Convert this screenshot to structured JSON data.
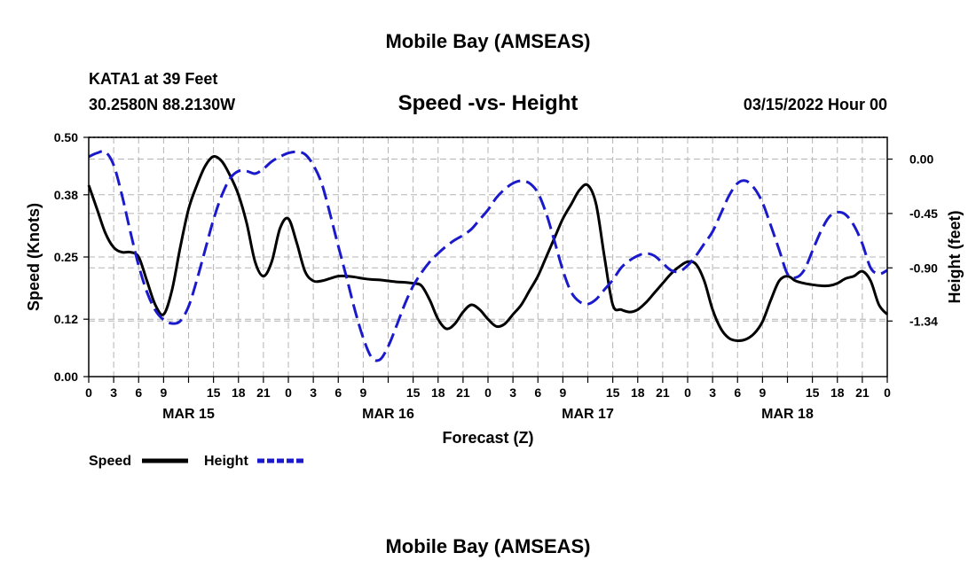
{
  "header": {
    "title": "Mobile Bay (AMSEAS)",
    "station": "KATA1 at 39 Feet",
    "coords": "30.2580N  88.2130W",
    "subtitle": "Speed -vs- Height",
    "datetime": "03/15/2022 Hour 00",
    "footer_title": "Mobile Bay (AMSEAS)"
  },
  "legend": {
    "speed_label": "Speed",
    "height_label": "Height"
  },
  "colors": {
    "speed": "#000000",
    "height": "#1a1acc",
    "grid": "#b4b4b4"
  },
  "chart_data": {
    "type": "line",
    "title": "Speed -vs- Height",
    "xlabel": "Forecast (Z)",
    "ylabel": "Speed (Knots)",
    "y2label": "Height (feet)",
    "xlim": [
      0,
      96
    ],
    "ylim": [
      0,
      0.5
    ],
    "y2lim": [
      -1.8,
      0.18
    ],
    "x_tick_labels": [
      "0",
      "3",
      "6",
      "9",
      "15",
      "18",
      "21",
      "0",
      "3",
      "6",
      "9",
      "15",
      "18",
      "21",
      "0",
      "3",
      "6",
      "9",
      "15",
      "18",
      "21",
      "0",
      "3",
      "6",
      "9",
      "15",
      "18",
      "21",
      "0"
    ],
    "x_tick_positions": [
      0,
      3,
      6,
      9,
      15,
      18,
      21,
      24,
      27,
      30,
      33,
      39,
      42,
      45,
      48,
      51,
      54,
      57,
      63,
      66,
      69,
      72,
      75,
      78,
      81,
      87,
      90,
      93,
      96
    ],
    "minor_x_ticks": [
      12,
      36,
      60,
      84
    ],
    "x_grid": [
      3,
      6,
      9,
      12,
      15,
      18,
      21,
      24,
      27,
      30,
      33,
      36,
      39,
      42,
      45,
      48,
      51,
      54,
      57,
      60,
      63,
      66,
      69,
      72,
      75,
      78,
      81,
      84,
      87,
      90,
      93
    ],
    "day_labels": [
      {
        "x": 12,
        "label": "MAR 15"
      },
      {
        "x": 36,
        "label": "MAR 16"
      },
      {
        "x": 60,
        "label": "MAR 17"
      },
      {
        "x": 84,
        "label": "MAR 18"
      }
    ],
    "y_ticks": [
      0.0,
      0.12,
      0.25,
      0.38,
      0.5
    ],
    "y_tick_labels": [
      "0.00",
      "0.12",
      "0.25",
      "0.38",
      "0.50"
    ],
    "y2_ticks": [
      0.0,
      -0.45,
      -0.9,
      -1.34
    ],
    "y2_tick_labels": [
      "0.00",
      "-0.45",
      "-0.90",
      "-1.34"
    ],
    "series": [
      {
        "name": "Speed",
        "axis": "left",
        "style": "solid",
        "x": [
          0,
          1,
          2,
          3,
          4,
          5,
          6,
          7,
          8,
          9,
          10,
          11,
          12,
          13,
          14,
          15,
          16,
          17,
          18,
          19,
          20,
          21,
          22,
          23,
          24,
          25,
          26,
          27,
          28,
          29,
          30,
          31,
          32,
          33,
          34,
          35,
          36,
          37,
          38,
          39,
          40,
          41,
          42,
          43,
          44,
          45,
          46,
          47,
          48,
          49,
          50,
          51,
          52,
          53,
          54,
          55,
          56,
          57,
          58,
          59,
          60,
          61,
          62,
          63,
          64,
          65,
          66,
          67,
          68,
          69,
          70,
          71,
          72,
          73,
          74,
          75,
          76,
          77,
          78,
          79,
          80,
          81,
          82,
          83,
          84,
          85,
          86,
          87,
          88,
          89,
          90,
          91,
          92,
          93,
          94,
          95,
          96
        ],
        "values": [
          0.4,
          0.35,
          0.3,
          0.27,
          0.26,
          0.26,
          0.25,
          0.2,
          0.15,
          0.13,
          0.18,
          0.27,
          0.35,
          0.4,
          0.44,
          0.46,
          0.45,
          0.42,
          0.38,
          0.32,
          0.24,
          0.21,
          0.24,
          0.31,
          0.33,
          0.28,
          0.22,
          0.2,
          0.2,
          0.205,
          0.21,
          0.21,
          0.208,
          0.205,
          0.203,
          0.202,
          0.2,
          0.198,
          0.197,
          0.195,
          0.19,
          0.16,
          0.12,
          0.1,
          0.11,
          0.135,
          0.15,
          0.14,
          0.12,
          0.105,
          0.11,
          0.13,
          0.15,
          0.18,
          0.21,
          0.25,
          0.29,
          0.33,
          0.36,
          0.39,
          0.4,
          0.36,
          0.25,
          0.15,
          0.14,
          0.135,
          0.14,
          0.155,
          0.175,
          0.195,
          0.215,
          0.23,
          0.24,
          0.235,
          0.2,
          0.14,
          0.1,
          0.08,
          0.075,
          0.078,
          0.09,
          0.115,
          0.16,
          0.2,
          0.21,
          0.2,
          0.195,
          0.192,
          0.19,
          0.19,
          0.195,
          0.205,
          0.21,
          0.22,
          0.2,
          0.15,
          0.13
        ]
      },
      {
        "name": "Height",
        "axis": "right",
        "style": "dashed",
        "x": [
          0,
          1,
          2,
          3,
          4,
          5,
          6,
          7,
          8,
          9,
          10,
          11,
          12,
          13,
          14,
          15,
          16,
          17,
          18,
          19,
          20,
          21,
          22,
          23,
          24,
          25,
          26,
          27,
          28,
          29,
          30,
          31,
          32,
          33,
          34,
          35,
          36,
          37,
          38,
          39,
          40,
          41,
          42,
          43,
          44,
          45,
          46,
          47,
          48,
          49,
          50,
          51,
          52,
          53,
          54,
          55,
          56,
          57,
          58,
          59,
          60,
          61,
          62,
          63,
          64,
          65,
          66,
          67,
          68,
          69,
          70,
          71,
          72,
          73,
          74,
          75,
          76,
          77,
          78,
          79,
          80,
          81,
          82,
          83,
          84,
          85,
          86,
          87,
          88,
          89,
          90,
          91,
          92,
          93,
          94,
          95,
          96
        ],
        "values": [
          0.02,
          0.05,
          0.06,
          -0.05,
          -0.3,
          -0.6,
          -0.88,
          -1.1,
          -1.25,
          -1.33,
          -1.36,
          -1.34,
          -1.22,
          -1.0,
          -0.75,
          -0.5,
          -0.3,
          -0.16,
          -0.1,
          -0.1,
          -0.12,
          -0.08,
          -0.02,
          0.02,
          0.05,
          0.06,
          0.04,
          -0.05,
          -0.2,
          -0.45,
          -0.72,
          -0.98,
          -1.25,
          -1.48,
          -1.64,
          -1.66,
          -1.55,
          -1.38,
          -1.2,
          -1.05,
          -0.94,
          -0.85,
          -0.78,
          -0.72,
          -0.67,
          -0.63,
          -0.58,
          -0.5,
          -0.42,
          -0.32,
          -0.25,
          -0.2,
          -0.18,
          -0.2,
          -0.28,
          -0.45,
          -0.68,
          -0.92,
          -1.1,
          -1.18,
          -1.2,
          -1.16,
          -1.08,
          -1.0,
          -0.9,
          -0.84,
          -0.8,
          -0.78,
          -0.8,
          -0.86,
          -0.92,
          -0.93,
          -0.88,
          -0.8,
          -0.7,
          -0.6,
          -0.45,
          -0.3,
          -0.2,
          -0.18,
          -0.24,
          -0.36,
          -0.55,
          -0.75,
          -0.95,
          -0.98,
          -0.92,
          -0.76,
          -0.6,
          -0.48,
          -0.44,
          -0.46,
          -0.55,
          -0.7,
          -0.9,
          -0.95,
          -0.92
        ]
      }
    ]
  }
}
